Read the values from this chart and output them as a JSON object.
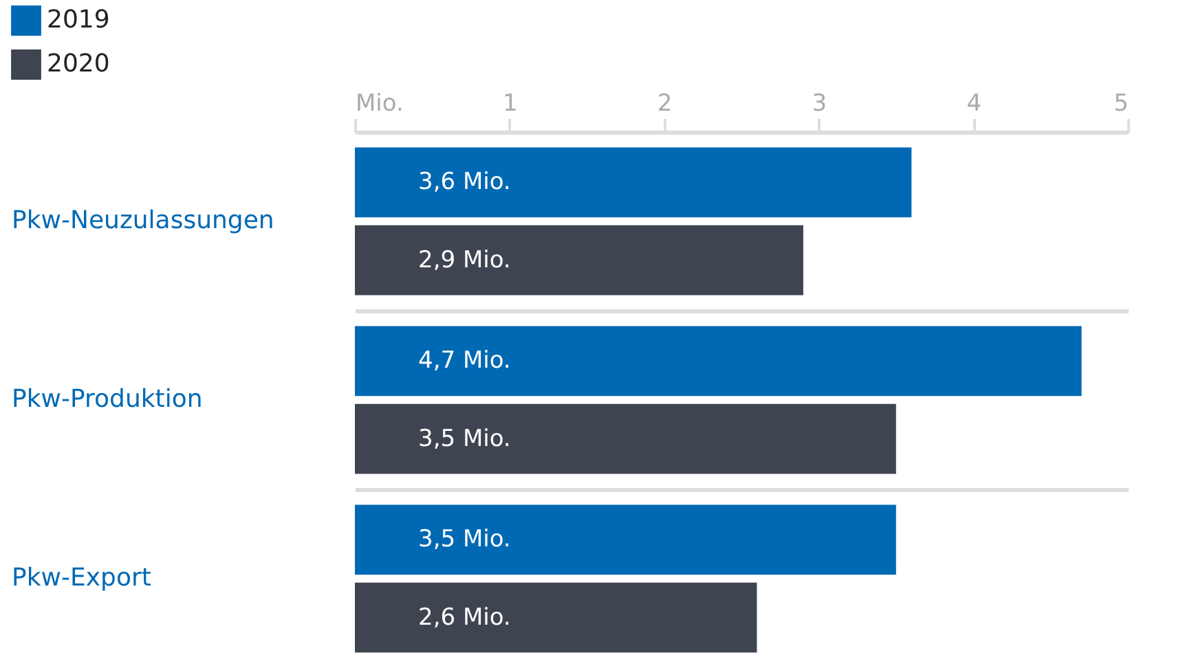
{
  "chart_data": {
    "type": "bar",
    "orientation": "horizontal",
    "categories": [
      "Pkw-Neuzulassungen",
      "Pkw-Produktion",
      "Pkw-Export"
    ],
    "series": [
      {
        "name": "2019",
        "color": "#0069b4",
        "values": [
          3.6,
          4.7,
          3.5
        ],
        "value_labels": [
          "3,6 Mio.",
          "4,7 Mio.",
          "3,5 Mio."
        ]
      },
      {
        "name": "2020",
        "color": "#3f4550",
        "values": [
          2.9,
          3.5,
          2.6
        ],
        "value_labels": [
          "2,9 Mio.",
          "3,5 Mio.",
          "2,6 Mio."
        ]
      }
    ],
    "xlim": [
      0,
      5
    ],
    "xticks": [
      {
        "value": 0,
        "label": "Mio."
      },
      1,
      2,
      3,
      4,
      5
    ],
    "grid": "y",
    "legend": "top left"
  }
}
